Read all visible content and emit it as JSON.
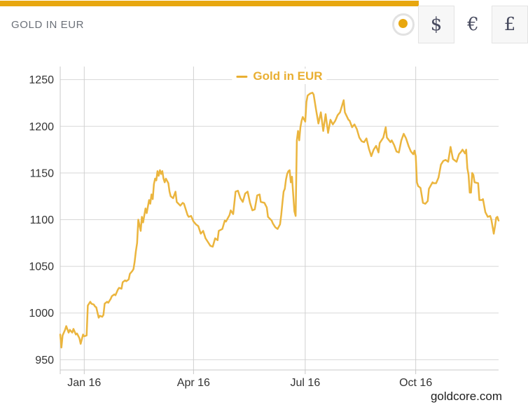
{
  "header": {
    "title": "GOLD IN EUR",
    "live_indicator": "gold-dot",
    "currency_buttons": [
      {
        "label": "$",
        "currency": "USD",
        "selected": false
      },
      {
        "label": "€",
        "currency": "EUR",
        "selected": true
      },
      {
        "label": "£",
        "currency": "GBP",
        "selected": false
      }
    ]
  },
  "footer": {
    "watermark": "goldcore.com"
  },
  "colors": {
    "accent_gold": "#E8A70F",
    "series_gold": "#EBB53E",
    "legend_gold": "#E9AF32",
    "gridline": "#D8D8D8",
    "axis_line": "#C8C8C8",
    "axis_text": "#333333"
  },
  "chart_data": {
    "type": "line",
    "title": "",
    "legend": {
      "label": "Gold in EUR",
      "position": "top-center"
    },
    "grid": true,
    "x_range_days": [
      0,
      365
    ],
    "x_ticks": [
      {
        "day": 20,
        "label": "Jan 16"
      },
      {
        "day": 111,
        "label": "Apr 16"
      },
      {
        "day": 204,
        "label": "Jul 16"
      },
      {
        "day": 296,
        "label": "Oct 16"
      }
    ],
    "y_ticks": [
      950,
      1000,
      1050,
      1100,
      1150,
      1200,
      1250
    ],
    "ylim": [
      939,
      1264
    ],
    "series": [
      {
        "name": "Gold in EUR",
        "color": "#EBB53E",
        "points": [
          [
            0,
            977
          ],
          [
            1,
            963
          ],
          [
            2,
            976
          ],
          [
            4,
            982
          ],
          [
            5,
            986
          ],
          [
            7,
            979
          ],
          [
            8,
            982
          ],
          [
            10,
            979
          ],
          [
            11,
            983
          ],
          [
            13,
            977
          ],
          [
            14,
            978
          ],
          [
            16,
            973
          ],
          [
            17,
            967
          ],
          [
            19,
            977
          ],
          [
            20,
            975
          ],
          [
            22,
            976
          ],
          [
            23,
            1008
          ],
          [
            25,
            1012
          ],
          [
            26,
            1010
          ],
          [
            28,
            1009
          ],
          [
            29,
            1007
          ],
          [
            30,
            1006
          ],
          [
            32,
            995
          ],
          [
            33,
            997
          ],
          [
            35,
            996
          ],
          [
            36,
            998
          ],
          [
            37,
            1010
          ],
          [
            39,
            1012
          ],
          [
            40,
            1011
          ],
          [
            42,
            1015
          ],
          [
            43,
            1018
          ],
          [
            45,
            1020
          ],
          [
            46,
            1019
          ],
          [
            48,
            1025
          ],
          [
            49,
            1027
          ],
          [
            51,
            1026
          ],
          [
            52,
            1033
          ],
          [
            54,
            1035
          ],
          [
            55,
            1034
          ],
          [
            57,
            1036
          ],
          [
            58,
            1042
          ],
          [
            60,
            1045
          ],
          [
            61,
            1047
          ],
          [
            62,
            1055
          ],
          [
            63,
            1066
          ],
          [
            64,
            1075
          ],
          [
            65,
            1100
          ],
          [
            67,
            1088
          ],
          [
            68,
            1103
          ],
          [
            69,
            1097
          ],
          [
            71,
            1112
          ],
          [
            72,
            1107
          ],
          [
            74,
            1121
          ],
          [
            75,
            1117
          ],
          [
            76,
            1127
          ],
          [
            77,
            1122
          ],
          [
            78,
            1138
          ],
          [
            79,
            1144
          ],
          [
            80,
            1142
          ],
          [
            81,
            1152
          ],
          [
            82,
            1147
          ],
          [
            83,
            1153
          ],
          [
            84,
            1149
          ],
          [
            85,
            1152
          ],
          [
            86,
            1144
          ],
          [
            87,
            1140
          ],
          [
            88,
            1144
          ],
          [
            90,
            1139
          ],
          [
            91,
            1130
          ],
          [
            92,
            1125
          ],
          [
            94,
            1123
          ],
          [
            96,
            1130
          ],
          [
            97,
            1119
          ],
          [
            100,
            1115
          ],
          [
            102,
            1118
          ],
          [
            103,
            1117
          ],
          [
            106,
            1105
          ],
          [
            107,
            1103
          ],
          [
            109,
            1104
          ],
          [
            111,
            1098
          ],
          [
            113,
            1095
          ],
          [
            115,
            1093
          ],
          [
            117,
            1085
          ],
          [
            119,
            1088
          ],
          [
            121,
            1080
          ],
          [
            123,
            1076
          ],
          [
            125,
            1072
          ],
          [
            127,
            1071
          ],
          [
            129,
            1080
          ],
          [
            131,
            1078
          ],
          [
            132,
            1088
          ],
          [
            135,
            1090
          ],
          [
            137,
            1099
          ],
          [
            138,
            1098
          ],
          [
            141,
            1105
          ],
          [
            142,
            1110
          ],
          [
            144,
            1106
          ],
          [
            146,
            1130
          ],
          [
            148,
            1131
          ],
          [
            150,
            1123
          ],
          [
            152,
            1119
          ],
          [
            154,
            1128
          ],
          [
            156,
            1130
          ],
          [
            158,
            1118
          ],
          [
            160,
            1110
          ],
          [
            162,
            1111
          ],
          [
            164,
            1126
          ],
          [
            166,
            1127
          ],
          [
            167,
            1119
          ],
          [
            170,
            1118
          ],
          [
            172,
            1113
          ],
          [
            173,
            1103
          ],
          [
            176,
            1099
          ],
          [
            177,
            1096
          ],
          [
            179,
            1092
          ],
          [
            181,
            1090
          ],
          [
            183,
            1095
          ],
          [
            184,
            1105
          ],
          [
            185,
            1118
          ],
          [
            186,
            1130
          ],
          [
            187,
            1133
          ],
          [
            188,
            1143
          ],
          [
            189,
            1149
          ],
          [
            190,
            1152
          ],
          [
            191,
            1153
          ],
          [
            192,
            1140
          ],
          [
            193,
            1146
          ],
          [
            194,
            1127
          ],
          [
            195,
            1109
          ],
          [
            196,
            1104
          ],
          [
            197,
            1185
          ],
          [
            198,
            1195
          ],
          [
            199,
            1185
          ],
          [
            200,
            1199
          ],
          [
            201,
            1206
          ],
          [
            202,
            1210
          ],
          [
            204,
            1205
          ],
          [
            205,
            1226
          ],
          [
            206,
            1233
          ],
          [
            208,
            1235
          ],
          [
            210,
            1236
          ],
          [
            211,
            1234
          ],
          [
            213,
            1218
          ],
          [
            215,
            1203
          ],
          [
            217,
            1215
          ],
          [
            219,
            1195
          ],
          [
            221,
            1213
          ],
          [
            223,
            1193
          ],
          [
            225,
            1207
          ],
          [
            227,
            1202
          ],
          [
            229,
            1206
          ],
          [
            231,
            1212
          ],
          [
            233,
            1215
          ],
          [
            236,
            1228
          ],
          [
            237,
            1215
          ],
          [
            240,
            1207
          ],
          [
            241,
            1206
          ],
          [
            243,
            1199
          ],
          [
            245,
            1202
          ],
          [
            247,
            1197
          ],
          [
            249,
            1188
          ],
          [
            251,
            1184
          ],
          [
            253,
            1183
          ],
          [
            255,
            1187
          ],
          [
            257,
            1176
          ],
          [
            259,
            1168
          ],
          [
            261,
            1175
          ],
          [
            263,
            1179
          ],
          [
            265,
            1172
          ],
          [
            266,
            1182
          ],
          [
            269,
            1188
          ],
          [
            271,
            1199
          ],
          [
            272,
            1188
          ],
          [
            275,
            1183
          ],
          [
            276,
            1185
          ],
          [
            278,
            1180
          ],
          [
            280,
            1173
          ],
          [
            282,
            1172
          ],
          [
            284,
            1185
          ],
          [
            286,
            1192
          ],
          [
            288,
            1187
          ],
          [
            290,
            1179
          ],
          [
            292,
            1173
          ],
          [
            294,
            1170
          ],
          [
            295,
            1174
          ],
          [
            296,
            1168
          ],
          [
            297,
            1140
          ],
          [
            298,
            1136
          ],
          [
            300,
            1134
          ],
          [
            302,
            1118
          ],
          [
            304,
            1117
          ],
          [
            306,
            1120
          ],
          [
            307,
            1133
          ],
          [
            310,
            1140
          ],
          [
            311,
            1139
          ],
          [
            313,
            1139
          ],
          [
            315,
            1145
          ],
          [
            317,
            1159
          ],
          [
            319,
            1163
          ],
          [
            321,
            1164
          ],
          [
            323,
            1162
          ],
          [
            325,
            1178
          ],
          [
            327,
            1165
          ],
          [
            329,
            1163
          ],
          [
            330,
            1162
          ],
          [
            332,
            1170
          ],
          [
            334,
            1173
          ],
          [
            335,
            1175
          ],
          [
            337,
            1171
          ],
          [
            338,
            1175
          ],
          [
            339,
            1155
          ],
          [
            340,
            1148
          ],
          [
            341,
            1129
          ],
          [
            342,
            1129
          ],
          [
            343,
            1150
          ],
          [
            344,
            1148
          ],
          [
            345,
            1140
          ],
          [
            348,
            1139
          ],
          [
            349,
            1121
          ],
          [
            351,
            1121
          ],
          [
            352,
            1122
          ],
          [
            354,
            1108
          ],
          [
            356,
            1103
          ],
          [
            358,
            1104
          ],
          [
            359,
            1100
          ],
          [
            361,
            1085
          ],
          [
            362,
            1093
          ],
          [
            363,
            1102
          ],
          [
            364,
            1103
          ],
          [
            365,
            1099
          ]
        ]
      }
    ]
  }
}
